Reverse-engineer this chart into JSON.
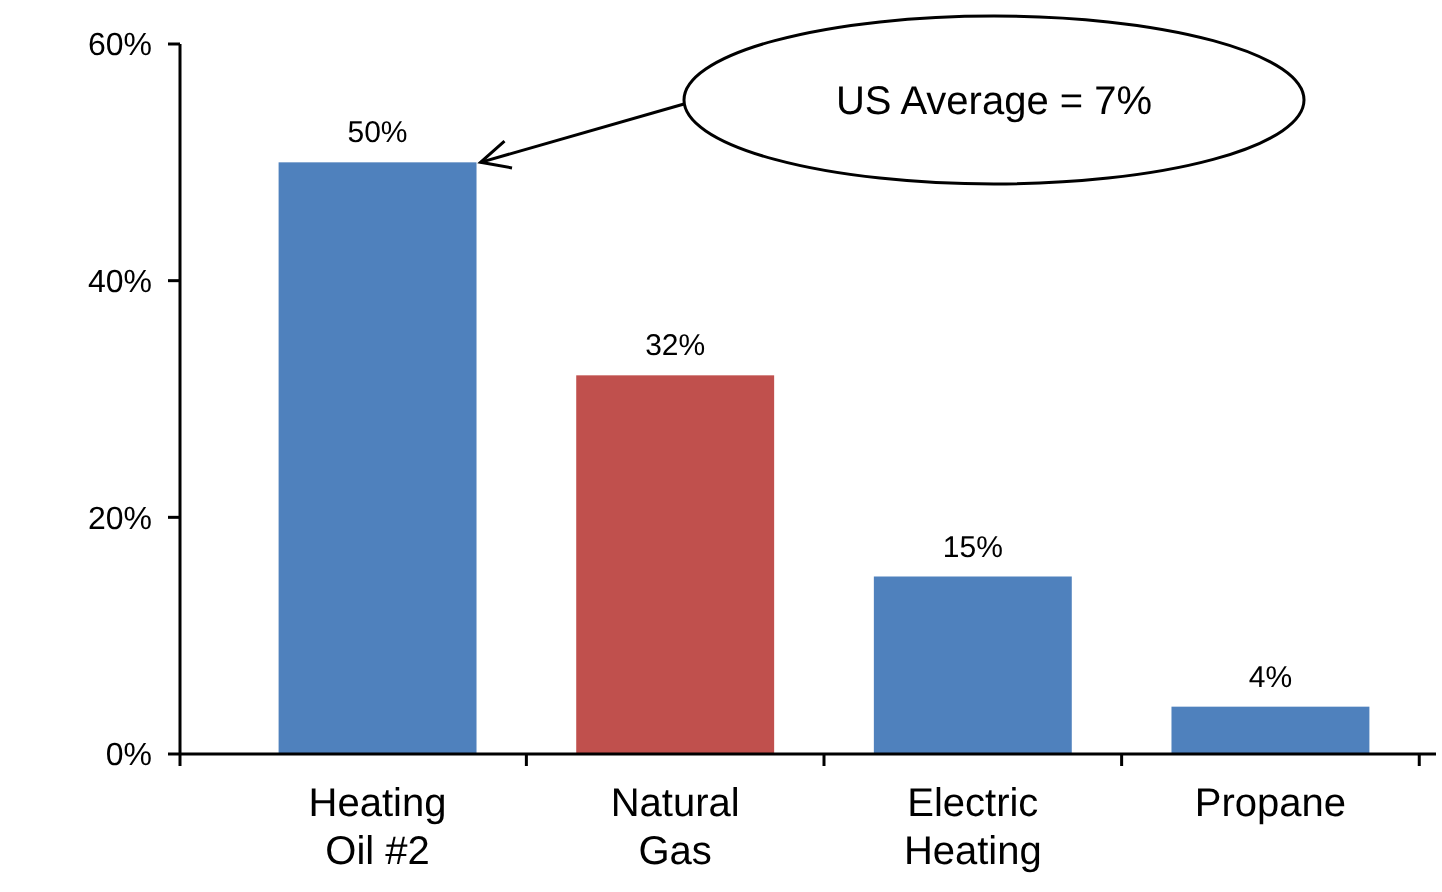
{
  "chart_data": {
    "type": "bar",
    "categories": [
      "Heating\nOil #2",
      "Natural\nGas",
      "Electric\nHeating",
      "Propane"
    ],
    "values": [
      50,
      32,
      15,
      4
    ],
    "colors": [
      "#4f81bd",
      "#c0504d",
      "#4f81bd",
      "#4f81bd"
    ],
    "value_labels": [
      "50%",
      "32%",
      "15%",
      "4%"
    ],
    "ylim": [
      0,
      60
    ],
    "yticks": [
      {
        "value": 0,
        "label": "0%"
      },
      {
        "value": 20,
        "label": "20%"
      },
      {
        "value": 40,
        "label": "40%"
      },
      {
        "value": 60,
        "label": "60%"
      }
    ],
    "annotations": [
      "US Average = 7%"
    ],
    "grid": false
  }
}
